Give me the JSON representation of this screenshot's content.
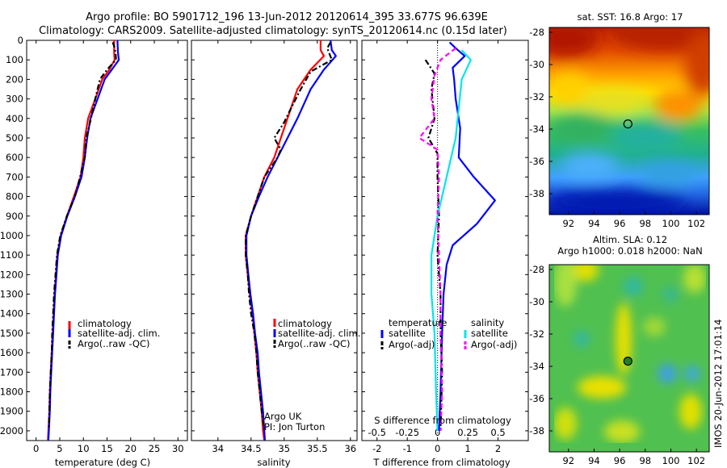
{
  "title": {
    "line1": "Argo profile: BO 5901712_196 13-Jun-2012 20120614_395 33.677S 96.639E",
    "line2": "Climatology: CARS2009. Satellite-adjusted climatology: synTS_20120614.nc (0.15d later)"
  },
  "colors": {
    "climatology": "#ff0000",
    "satellite": "#0000ff",
    "argo": "#000000",
    "sat_salinity": "#00e5ee",
    "argo_salinity": "#ff00ff"
  },
  "side_text": "IMOS 20-Jun-2012 17:01:14",
  "chart_data": [
    {
      "id": "temperature",
      "type": "line",
      "xlabel": "temperature (deg C)",
      "ylabel": "",
      "xlim": [
        -2,
        32
      ],
      "ylim": [
        2050,
        0
      ],
      "xticks": [
        "0",
        "5",
        "10",
        "15",
        "20",
        "25",
        "30"
      ],
      "yticks": [
        "0",
        "100",
        "200",
        "300",
        "400",
        "500",
        "600",
        "700",
        "800",
        "900",
        "1000",
        "1100",
        "1200",
        "1300",
        "1400",
        "1500",
        "1600",
        "1700",
        "1800",
        "1900",
        "2000"
      ],
      "legend": [
        "climatology",
        "satellite-adj. clim.",
        "Argo(..raw -QC)"
      ],
      "legend_position": "lower-middle",
      "series": [
        {
          "name": "climatology",
          "style": "solid",
          "points": [
            [
              16.5,
              0
            ],
            [
              16.5,
              60
            ],
            [
              16.6,
              100
            ],
            [
              15.5,
              150
            ],
            [
              14,
              200
            ],
            [
              12.5,
              300
            ],
            [
              11,
              400
            ],
            [
              10.3,
              500
            ],
            [
              10,
              600
            ],
            [
              9.4,
              700
            ],
            [
              8,
              800
            ],
            [
              6.5,
              900
            ],
            [
              5.2,
              1000
            ],
            [
              4.5,
              1100
            ],
            [
              4.2,
              1200
            ],
            [
              3.9,
              1300
            ],
            [
              3.7,
              1400
            ],
            [
              3.5,
              1500
            ],
            [
              3.3,
              1600
            ],
            [
              3.1,
              1700
            ],
            [
              2.9,
              1800
            ],
            [
              2.8,
              1900
            ],
            [
              2.6,
              2000
            ],
            [
              2.5,
              2050
            ]
          ]
        },
        {
          "name": "satellite-adj. clim.",
          "style": "solid",
          "points": [
            [
              17.2,
              0
            ],
            [
              17.3,
              60
            ],
            [
              17.5,
              100
            ],
            [
              16,
              150
            ],
            [
              14.5,
              200
            ],
            [
              13,
              300
            ],
            [
              11.5,
              400
            ],
            [
              10.8,
              500
            ],
            [
              10.3,
              600
            ],
            [
              9.6,
              700
            ],
            [
              8.2,
              800
            ],
            [
              6.6,
              900
            ],
            [
              5.3,
              1000
            ],
            [
              4.6,
              1100
            ],
            [
              4.3,
              1200
            ],
            [
              4,
              1300
            ],
            [
              3.8,
              1400
            ],
            [
              3.6,
              1500
            ],
            [
              3.4,
              1600
            ],
            [
              3.2,
              1700
            ],
            [
              3,
              1800
            ],
            [
              2.9,
              1900
            ],
            [
              2.7,
              2000
            ],
            [
              2.6,
              2050
            ]
          ]
        },
        {
          "name": "Argo(..raw -QC)",
          "style": "dashdot",
          "points": [
            [
              16.2,
              10
            ],
            [
              16.5,
              30
            ],
            [
              16.8,
              60
            ],
            [
              16.9,
              100
            ],
            [
              15,
              150
            ],
            [
              13.5,
              200
            ],
            [
              12.5,
              300
            ],
            [
              11.6,
              400
            ],
            [
              10.6,
              500
            ],
            [
              10.3,
              600
            ],
            [
              9.3,
              700
            ],
            [
              8.2,
              800
            ],
            [
              6.5,
              900
            ],
            [
              5.1,
              1000
            ],
            [
              4.4,
              1100
            ],
            [
              4.1,
              1200
            ],
            [
              3.8,
              1300
            ],
            [
              3.6,
              1400
            ],
            [
              3.4,
              1500
            ],
            [
              3.3,
              1600
            ],
            [
              3.1,
              1700
            ],
            [
              2.9,
              1800
            ],
            [
              2.8,
              1900
            ],
            [
              2.7,
              1980
            ]
          ]
        }
      ]
    },
    {
      "id": "salinity",
      "type": "line",
      "xlabel": "salinity",
      "ylabel": "",
      "xlim": [
        33.6,
        36.1
      ],
      "ylim": [
        2050,
        0
      ],
      "xticks": [
        "34",
        "34.5",
        "35",
        "35.5",
        "36"
      ],
      "yticks": [],
      "legend": [
        "climatology",
        "satellite-adj. clim.",
        "Argo(..raw -QC)"
      ],
      "legend_position": "lower-right",
      "annotation": {
        "line1": "Argo UK",
        "line2": "PI: Jon Turton"
      },
      "series": [
        {
          "name": "climatology",
          "style": "solid",
          "points": [
            [
              35.55,
              0
            ],
            [
              35.55,
              50
            ],
            [
              35.6,
              80
            ],
            [
              35.4,
              150
            ],
            [
              35.2,
              250
            ],
            [
              35.05,
              400
            ],
            [
              34.95,
              500
            ],
            [
              34.85,
              600
            ],
            [
              34.7,
              700
            ],
            [
              34.6,
              800
            ],
            [
              34.5,
              900
            ],
            [
              34.42,
              1000
            ],
            [
              34.42,
              1100
            ],
            [
              34.45,
              1200
            ],
            [
              34.48,
              1300
            ],
            [
              34.52,
              1400
            ],
            [
              34.55,
              1500
            ],
            [
              34.58,
              1600
            ],
            [
              34.6,
              1700
            ],
            [
              34.63,
              1800
            ],
            [
              34.66,
              1900
            ],
            [
              34.68,
              2000
            ],
            [
              34.7,
              2050
            ]
          ]
        },
        {
          "name": "satellite-adj. clim.",
          "style": "solid",
          "points": [
            [
              35.7,
              0
            ],
            [
              35.72,
              50
            ],
            [
              35.78,
              80
            ],
            [
              35.6,
              150
            ],
            [
              35.4,
              250
            ],
            [
              35.2,
              400
            ],
            [
              35.05,
              500
            ],
            [
              34.9,
              600
            ],
            [
              34.75,
              700
            ],
            [
              34.62,
              800
            ],
            [
              34.5,
              900
            ],
            [
              34.43,
              1000
            ],
            [
              34.43,
              1100
            ],
            [
              34.46,
              1200
            ],
            [
              34.49,
              1300
            ],
            [
              34.53,
              1400
            ],
            [
              34.56,
              1500
            ],
            [
              34.6,
              1600
            ],
            [
              34.62,
              1700
            ],
            [
              34.65,
              1800
            ],
            [
              34.68,
              1900
            ],
            [
              34.7,
              2000
            ],
            [
              34.71,
              2050
            ]
          ]
        },
        {
          "name": "Argo(..raw -QC)",
          "style": "dashdot",
          "points": [
            [
              35.7,
              10
            ],
            [
              35.65,
              40
            ],
            [
              35.72,
              100
            ],
            [
              35.4,
              160
            ],
            [
              35.25,
              250
            ],
            [
              35.1,
              350
            ],
            [
              35.0,
              420
            ],
            [
              34.85,
              500
            ],
            [
              34.95,
              560
            ],
            [
              34.9,
              600
            ],
            [
              34.7,
              700
            ],
            [
              34.6,
              800
            ],
            [
              34.5,
              900
            ],
            [
              34.42,
              1000
            ],
            [
              34.42,
              1100
            ],
            [
              34.45,
              1200
            ],
            [
              34.47,
              1300
            ],
            [
              34.5,
              1400
            ],
            [
              34.55,
              1500
            ],
            [
              34.58,
              1600
            ],
            [
              34.6,
              1700
            ],
            [
              34.63,
              1800
            ],
            [
              34.66,
              1900
            ],
            [
              34.7,
              1990
            ]
          ]
        }
      ]
    },
    {
      "id": "difference",
      "type": "line",
      "xlabel": "T difference from climatology",
      "xlabel_top": "S difference from climatology",
      "ylabel": "",
      "xlim": [
        -2.5,
        3
      ],
      "ylim": [
        2050,
        0
      ],
      "xticks": [
        "-2",
        "-1",
        "0",
        "1",
        "2"
      ],
      "xticks_salinity": [
        "-0.5",
        "-0.25",
        "0",
        "0.25",
        "0.5"
      ],
      "yticks": [],
      "legend": [
        "temperature",
        "satellite",
        "Argo(-adj)",
        "salinity",
        "satellite",
        "Argo(-adj)"
      ],
      "legend_position": "lower-middle",
      "series": [
        {
          "name": "temperature satellite",
          "style": "solid",
          "points": [
            [
              0.4,
              10
            ],
            [
              0.6,
              40
            ],
            [
              0.9,
              80
            ],
            [
              0.5,
              140
            ],
            [
              0.55,
              200
            ],
            [
              0.6,
              300
            ],
            [
              0.75,
              450
            ],
            [
              0.7,
              600
            ],
            [
              1.2,
              700
            ],
            [
              1.9,
              820
            ],
            [
              1.3,
              940
            ],
            [
              0.5,
              1050
            ],
            [
              0.3,
              1150
            ],
            [
              0.2,
              1300
            ],
            [
              0.15,
              1500
            ],
            [
              0.1,
              1800
            ],
            [
              0.05,
              2000
            ]
          ]
        },
        {
          "name": "temperature Argo(-adj)",
          "style": "dashdot",
          "points": [
            [
              -0.4,
              100
            ],
            [
              -0.1,
              170
            ],
            [
              -0.2,
              250
            ],
            [
              -0.1,
              400
            ],
            [
              -0.3,
              500
            ],
            [
              0,
              580
            ],
            [
              0,
              700
            ],
            [
              0.05,
              900
            ],
            [
              0,
              1100
            ],
            [
              0.1,
              1300
            ],
            [
              0.1,
              1500
            ],
            [
              0.15,
              1700
            ],
            [
              0.1,
              2000
            ]
          ]
        },
        {
          "name": "salinity satellite",
          "style": "solid",
          "points": [
            [
              0.8,
              50
            ],
            [
              1.1,
              100
            ],
            [
              0.8,
              200
            ],
            [
              0.6,
              500
            ],
            [
              0.3,
              700
            ],
            [
              0,
              900
            ],
            [
              -0.2,
              1100
            ],
            [
              -0.2,
              1300
            ],
            [
              -0.1,
              1500
            ],
            [
              -0.05,
              1800
            ],
            [
              0,
              2000
            ]
          ]
        },
        {
          "name": "salinity Argo(-adj)",
          "style": "dashed",
          "points": [
            [
              0.6,
              40
            ],
            [
              0.1,
              100
            ],
            [
              -0.1,
              180
            ],
            [
              -0.2,
              300
            ],
            [
              -0.1,
              400
            ],
            [
              -0.6,
              500
            ],
            [
              0,
              560
            ],
            [
              0.05,
              700
            ],
            [
              0,
              900
            ],
            [
              0.05,
              1100
            ],
            [
              0.1,
              1300
            ],
            [
              0.1,
              1500
            ],
            [
              0.15,
              1800
            ],
            [
              0.1,
              2000
            ]
          ]
        }
      ]
    },
    {
      "id": "sst_map",
      "type": "heatmap",
      "title": "sat. SST: 16.8 Argo: 17",
      "xticks": [
        "92",
        "94",
        "96",
        "98",
        "100",
        "102"
      ],
      "yticks": [
        "-28",
        "-30",
        "-32",
        "-34",
        "-36",
        "-38"
      ],
      "xlim": [
        90.5,
        103
      ],
      "ylim": [
        -39.3,
        -27.7
      ],
      "marker": [
        96.64,
        -33.68
      ]
    },
    {
      "id": "sla_map",
      "type": "heatmap",
      "title_line1": "Altim. SLA: 0.12",
      "title_line2": "Argo h1000: 0.018 h2000: NaN",
      "xticks": [
        "92",
        "94",
        "96",
        "98",
        "100",
        "102"
      ],
      "yticks": [
        "-28",
        "-30",
        "-32",
        "-34",
        "-36",
        "-38"
      ],
      "xlim": [
        90.5,
        103
      ],
      "ylim": [
        -39.3,
        -27.7
      ],
      "marker": [
        96.64,
        -33.68
      ]
    }
  ]
}
